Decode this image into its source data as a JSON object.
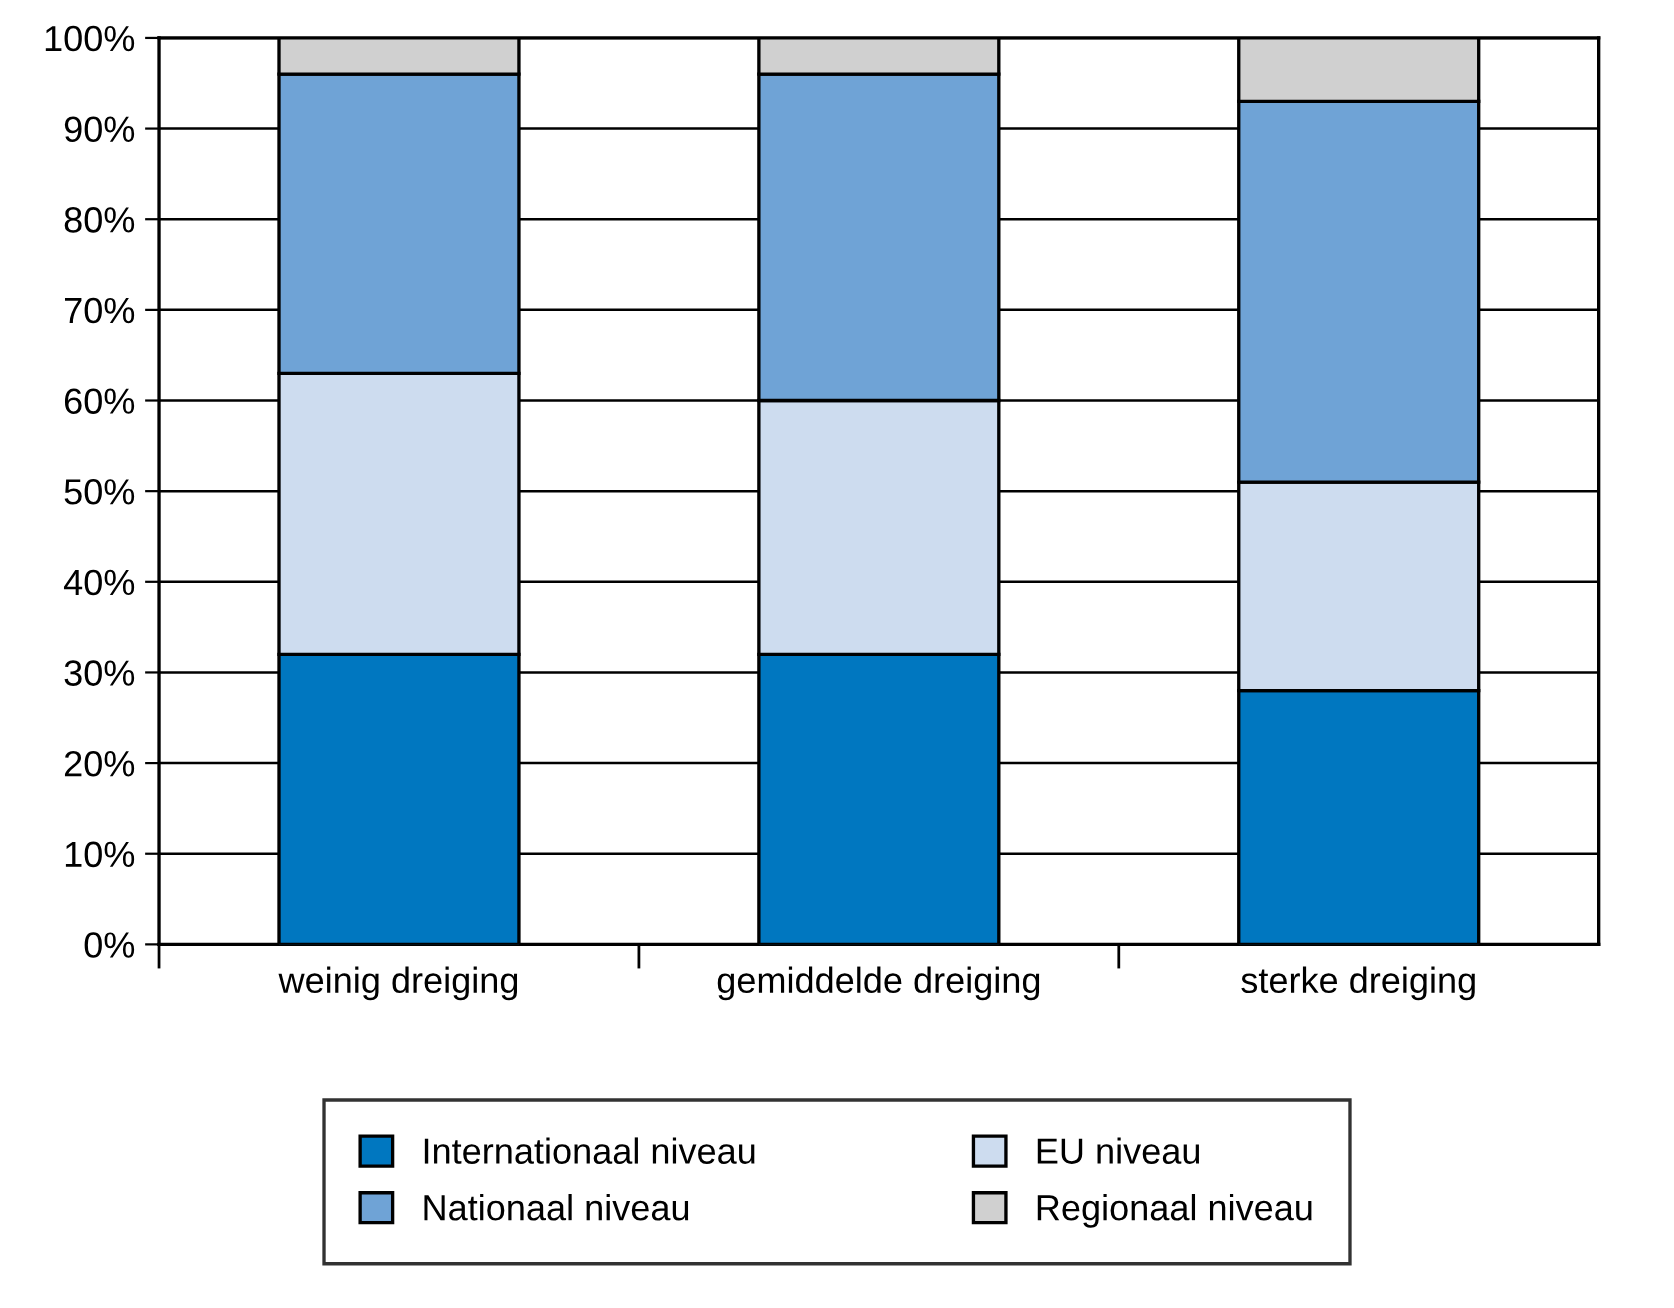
{
  "chart_data": {
    "type": "bar",
    "stacked": true,
    "categories": [
      "weinig dreiging",
      "gemiddelde dreiging",
      "sterke dreiging"
    ],
    "series": [
      {
        "name": "Internationaal niveau",
        "color": "#0077c0",
        "values": [
          32,
          32,
          28
        ]
      },
      {
        "name": "EU niveau",
        "color": "#cddcef",
        "values": [
          31,
          28,
          23
        ]
      },
      {
        "name": "Nationaal niveau",
        "color": "#6fa3d6",
        "values": [
          33,
          36,
          42
        ]
      },
      {
        "name": "Regionaal niveau",
        "color": "#d0d0d0",
        "values": [
          4,
          4,
          7
        ]
      }
    ],
    "ylim": [
      0,
      100
    ],
    "yticks": [
      {
        "value": 0,
        "label": "0%"
      },
      {
        "value": 10,
        "label": "10%"
      },
      {
        "value": 20,
        "label": "20%"
      },
      {
        "value": 30,
        "label": "30%"
      },
      {
        "value": 40,
        "label": "40%"
      },
      {
        "value": 50,
        "label": "50%"
      },
      {
        "value": 60,
        "label": "60%"
      },
      {
        "value": 70,
        "label": "70%"
      },
      {
        "value": 80,
        "label": "80%"
      },
      {
        "value": 90,
        "label": "90%"
      },
      {
        "value": 100,
        "label": "100%"
      }
    ],
    "grid": "y",
    "legend": "bottom"
  }
}
